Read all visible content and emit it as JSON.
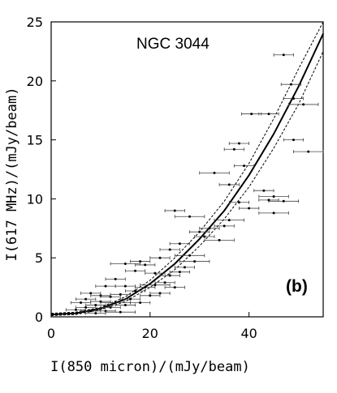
{
  "chart_data": {
    "type": "scatter",
    "title": "",
    "annotation": "NGC 3044",
    "panel_label": "(b)",
    "xlabel": "I(850 micron)/(mJy/beam)",
    "ylabel": "I(617 MHz)/(mJy/beam)",
    "xlim": [
      0,
      55
    ],
    "ylim": [
      0,
      25
    ],
    "x_ticks": [
      0,
      20,
      40
    ],
    "y_ticks": [
      0,
      5,
      10,
      15,
      20,
      25
    ],
    "grid": false,
    "points": [
      [
        47,
        22.2,
        2
      ],
      [
        48.5,
        19.7,
        2
      ],
      [
        51,
        18,
        3
      ],
      [
        49,
        18.5,
        2
      ],
      [
        49,
        15,
        2
      ],
      [
        52,
        14,
        3
      ],
      [
        44,
        17.2,
        2
      ],
      [
        40.5,
        17.2,
        2
      ],
      [
        37,
        14.2,
        2
      ],
      [
        38,
        14.7,
        2
      ],
      [
        39,
        12.8,
        2
      ],
      [
        33,
        12.2,
        3
      ],
      [
        36,
        11.2,
        2
      ],
      [
        43,
        10.7,
        2
      ],
      [
        45,
        10.2,
        3
      ],
      [
        47,
        9.8,
        3
      ],
      [
        45,
        8.8,
        3
      ],
      [
        44,
        9.9,
        2
      ],
      [
        38,
        9.7,
        2
      ],
      [
        40,
        9.2,
        2
      ],
      [
        36,
        8.2,
        3
      ],
      [
        35,
        7.7,
        2
      ],
      [
        32,
        7.5,
        2
      ],
      [
        30,
        7.2,
        2
      ],
      [
        28,
        8.5,
        3
      ],
      [
        25,
        9.0,
        2
      ],
      [
        31,
        6.8,
        2
      ],
      [
        34,
        6.5,
        3
      ],
      [
        26,
        6.2,
        2
      ],
      [
        24,
        5.7,
        2
      ],
      [
        28,
        5.2,
        3
      ],
      [
        22,
        5.0,
        2
      ],
      [
        18,
        4.7,
        2
      ],
      [
        19,
        4.4,
        2
      ],
      [
        15,
        4.5,
        3
      ],
      [
        17,
        3.9,
        2
      ],
      [
        21,
        3.7,
        2
      ],
      [
        24,
        3.5,
        2
      ],
      [
        27,
        4.2,
        2
      ],
      [
        29,
        4.7,
        3
      ],
      [
        13,
        3.2,
        2
      ],
      [
        11,
        2.6,
        2
      ],
      [
        15,
        2.6,
        2
      ],
      [
        17,
        2.2,
        2
      ],
      [
        19,
        2.5,
        2
      ],
      [
        21,
        2.7,
        3
      ],
      [
        8,
        2.0,
        2
      ],
      [
        10,
        1.8,
        2
      ],
      [
        12,
        1.7,
        2
      ],
      [
        14,
        1.9,
        2
      ],
      [
        6,
        1.2,
        2
      ],
      [
        7,
        0.8,
        2
      ],
      [
        9,
        1.0,
        2
      ],
      [
        10,
        1.3,
        2
      ],
      [
        12,
        0.8,
        2
      ],
      [
        13,
        1.2,
        3
      ],
      [
        15,
        1.0,
        2
      ],
      [
        16,
        1.5,
        2
      ],
      [
        18,
        1.2,
        2
      ],
      [
        11,
        0.5,
        2
      ],
      [
        8,
        0.5,
        2
      ],
      [
        9,
        0.3,
        2
      ],
      [
        20,
        1.8,
        2
      ],
      [
        22,
        2.0,
        2
      ],
      [
        25,
        2.5,
        2
      ],
      [
        14,
        0.4,
        3
      ],
      [
        5,
        0.6,
        2
      ],
      [
        7,
        1.5,
        2
      ],
      [
        23,
        2.9,
        2
      ],
      [
        26,
        3.8,
        2
      ]
    ],
    "fit_curve": {
      "x": [
        0,
        5,
        10,
        15,
        20,
        25,
        30,
        35,
        40,
        45,
        50,
        55
      ],
      "y": [
        0.2,
        0.3,
        0.7,
        1.5,
        2.8,
        4.5,
        6.6,
        9.0,
        12.0,
        15.5,
        19.5,
        24.0
      ]
    },
    "fit_upper": {
      "x": [
        0,
        5,
        10,
        15,
        20,
        25,
        30,
        35,
        40,
        45,
        50,
        55
      ],
      "y": [
        0.3,
        0.4,
        0.8,
        1.7,
        3.1,
        5.0,
        7.2,
        9.8,
        13.0,
        16.8,
        21.0,
        25.5
      ]
    },
    "fit_lower": {
      "x": [
        0,
        5,
        10,
        15,
        20,
        25,
        30,
        35,
        40,
        45,
        50,
        55
      ],
      "y": [
        0.1,
        0.2,
        0.6,
        1.3,
        2.5,
        4.0,
        6.0,
        8.3,
        11.0,
        14.3,
        18.0,
        22.5
      ]
    }
  }
}
